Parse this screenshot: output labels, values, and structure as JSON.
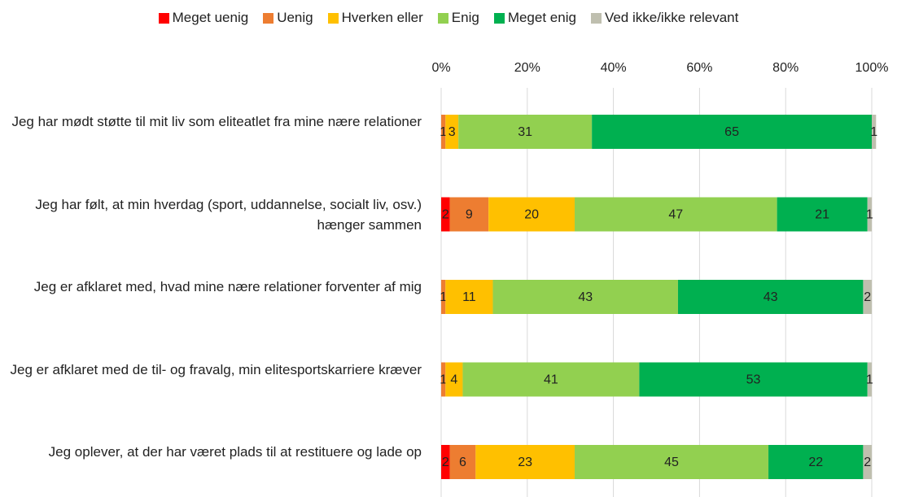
{
  "chart_data": {
    "type": "stacked_bar_horizontal",
    "categories": [
      "Jeg har mødt støtte til mit liv som eliteatlet fra mine nære relationer",
      "Jeg har følt, at min hverdag (sport, uddannelse, socialt liv, osv.) hænger sammen",
      "Jeg er afklaret med, hvad mine nære relationer forventer af mig",
      "Jeg er afklaret med de til- og fravalg, min elitesportskarriere kræver",
      "Jeg oplever, at der har været plads til at restituere og lade op"
    ],
    "series": [
      {
        "name": "Meget uenig",
        "color": "#ff0000",
        "values": [
          null,
          2,
          null,
          null,
          2
        ]
      },
      {
        "name": "Uenig",
        "color": "#ed7d31",
        "values": [
          1,
          9,
          1,
          1,
          6
        ]
      },
      {
        "name": "Hverken eller",
        "color": "#ffc000",
        "values": [
          3,
          20,
          11,
          4,
          23
        ]
      },
      {
        "name": "Enig",
        "color": "#92d050",
        "values": [
          31,
          47,
          43,
          41,
          45
        ]
      },
      {
        "name": "Meget enig",
        "color": "#00b050",
        "values": [
          65,
          21,
          43,
          53,
          22
        ]
      },
      {
        "name": "Ved ikke/ikke relevant",
        "color": "#bfbfaf",
        "values": [
          1,
          1,
          2,
          1,
          2
        ]
      }
    ],
    "xlim": [
      0,
      100
    ],
    "xticks": [
      {
        "value": 0,
        "label": "0%"
      },
      {
        "value": 20,
        "label": "20%"
      },
      {
        "value": 40,
        "label": "40%"
      },
      {
        "value": 60,
        "label": "60%"
      },
      {
        "value": 80,
        "label": "80%"
      },
      {
        "value": 100,
        "label": "100%"
      }
    ],
    "grid": true,
    "legend": "top"
  }
}
